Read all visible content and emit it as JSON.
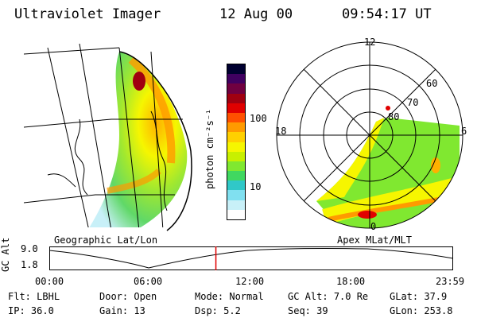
{
  "header": {
    "instrument": "Ultraviolet Imager",
    "date": "12 Aug 00",
    "time": "09:54:17 UT"
  },
  "geo_panel": {
    "label": "Geographic Lat/Lon"
  },
  "polar_panel": {
    "label": "Apex MLat/MLT",
    "mlt_labels": {
      "top": "12",
      "left": "18",
      "right": "6",
      "bottom": "0"
    },
    "lat_labels": [
      "60",
      "70",
      "80"
    ]
  },
  "colorbar": {
    "unit_label": "photon cm⁻²s⁻¹",
    "tick_labels": [
      "100",
      "10"
    ],
    "colors": [
      "#000030",
      "#400060",
      "#700040",
      "#a00010",
      "#e00000",
      "#ff5000",
      "#ff9a00",
      "#ffd000",
      "#f6f600",
      "#c8f000",
      "#80e830",
      "#40d860",
      "#30c8c8",
      "#80e0f0",
      "#c8f0f8",
      "#ffffff"
    ]
  },
  "timeline": {
    "ylabel": "GC Alt",
    "y_ticks": [
      "9.0",
      "1.8"
    ],
    "x_ticks": [
      "00:00",
      "06:00",
      "12:00",
      "18:00",
      "23:59"
    ],
    "current_time_hours": 9.9,
    "marker_color": "#e00000"
  },
  "info": {
    "row1": [
      {
        "key": "Flt:",
        "value": "LBHL"
      },
      {
        "key": "Door:",
        "value": "Open"
      },
      {
        "key": "Mode:",
        "value": "Normal"
      },
      {
        "key": "GC Alt:",
        "value": "7.0 Re"
      },
      {
        "key": "GLat:",
        "value": "37.9"
      }
    ],
    "row2": [
      {
        "key": "IP:",
        "value": "36.0"
      },
      {
        "key": "Gain:",
        "value": "13"
      },
      {
        "key": "Dsp:",
        "value": "5.2"
      },
      {
        "key": "Seq:",
        "value": "39"
      },
      {
        "key": "GLon:",
        "value": "253.8"
      }
    ]
  }
}
